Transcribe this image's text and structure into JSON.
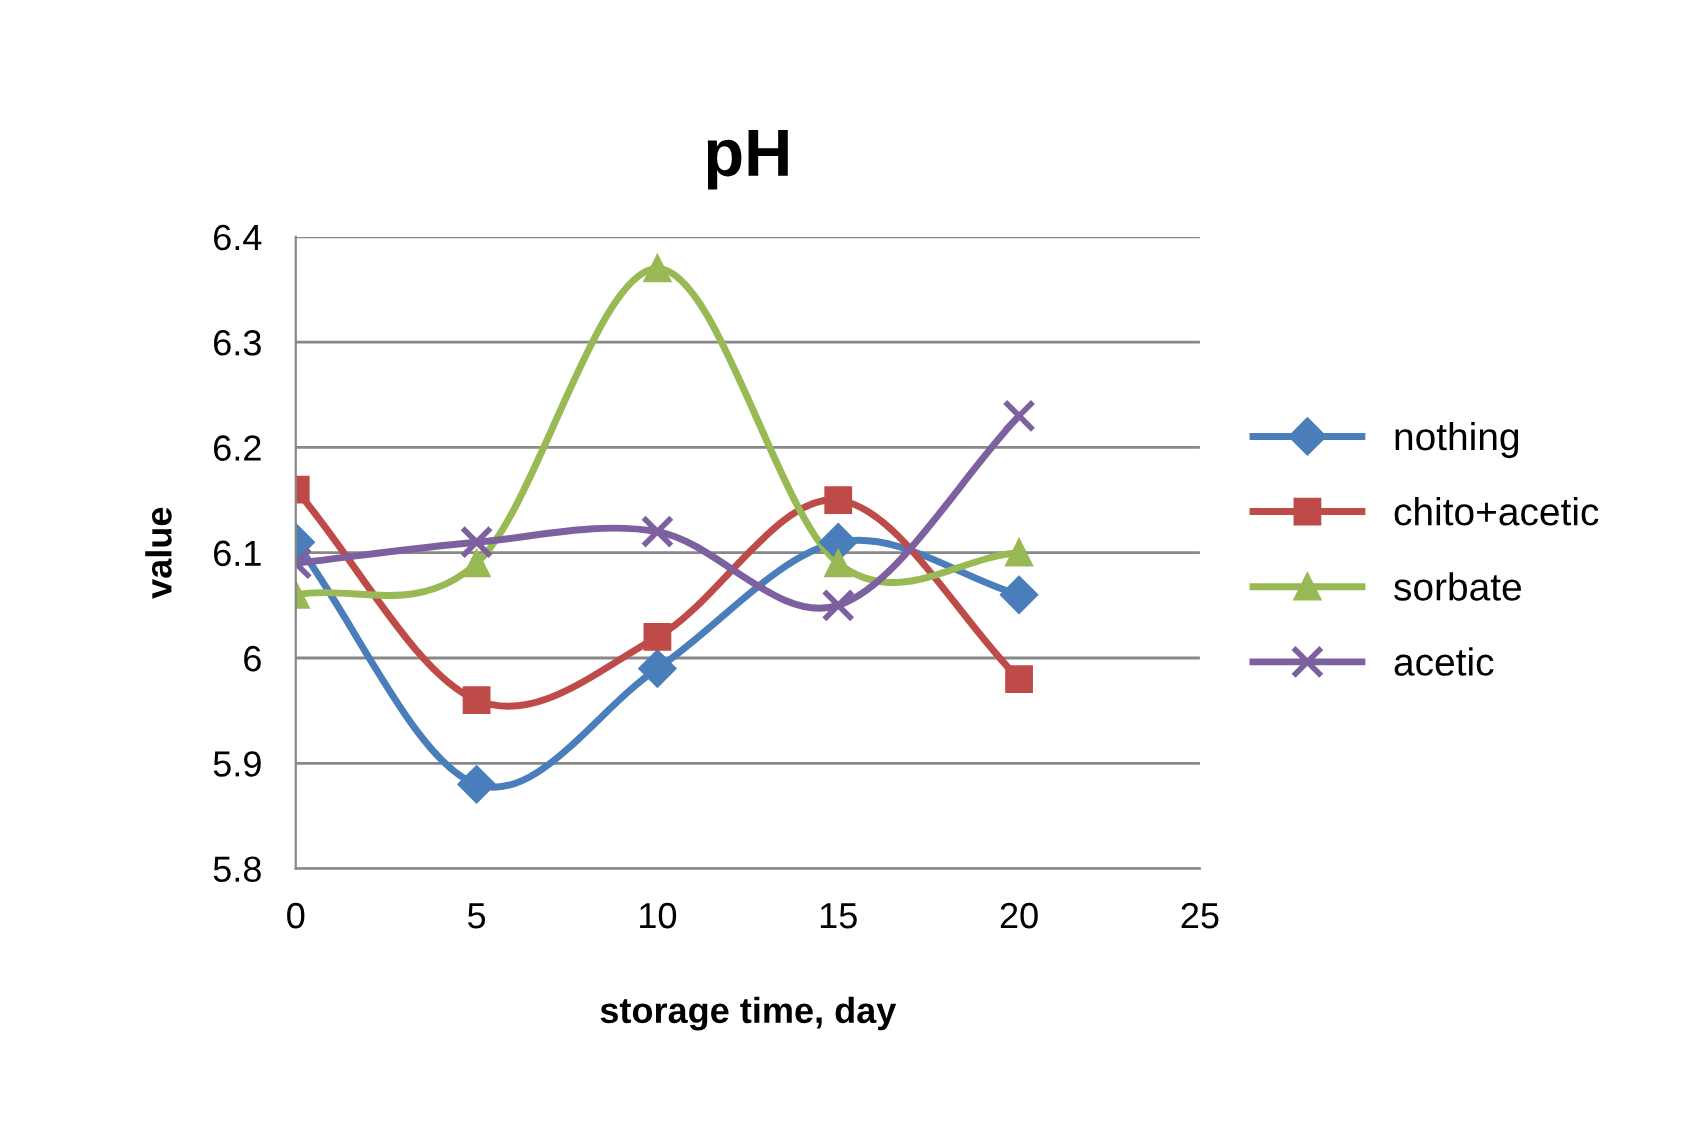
{
  "chart_data": {
    "type": "line",
    "title": "pH",
    "xlabel": "storage time, day",
    "ylabel": "value",
    "x": [
      0,
      5,
      10,
      15,
      20
    ],
    "series": [
      {
        "name": "nothing",
        "color": "#4a7ebb",
        "marker": "diamond",
        "values": [
          6.11,
          5.88,
          5.99,
          6.11,
          6.06
        ]
      },
      {
        "name": "chito+acetic",
        "color": "#be4b48",
        "marker": "square",
        "values": [
          6.16,
          5.96,
          6.02,
          6.15,
          5.98
        ]
      },
      {
        "name": "sorbate",
        "color": "#98b954",
        "marker": "triangle",
        "values": [
          6.06,
          6.09,
          6.37,
          6.09,
          6.1
        ]
      },
      {
        "name": "acetic",
        "color": "#7d60a0",
        "marker": "cross",
        "values": [
          6.09,
          6.11,
          6.12,
          6.05,
          6.23
        ]
      }
    ],
    "xlim": [
      0,
      25
    ],
    "xticks": [
      0,
      5,
      10,
      15,
      20,
      25
    ],
    "ylim": [
      5.8,
      6.4
    ],
    "yticks": [
      5.8,
      5.9,
      6,
      6.1,
      6.2,
      6.3,
      6.4
    ],
    "grid": "y",
    "legend": "right",
    "line_style": "solid"
  }
}
